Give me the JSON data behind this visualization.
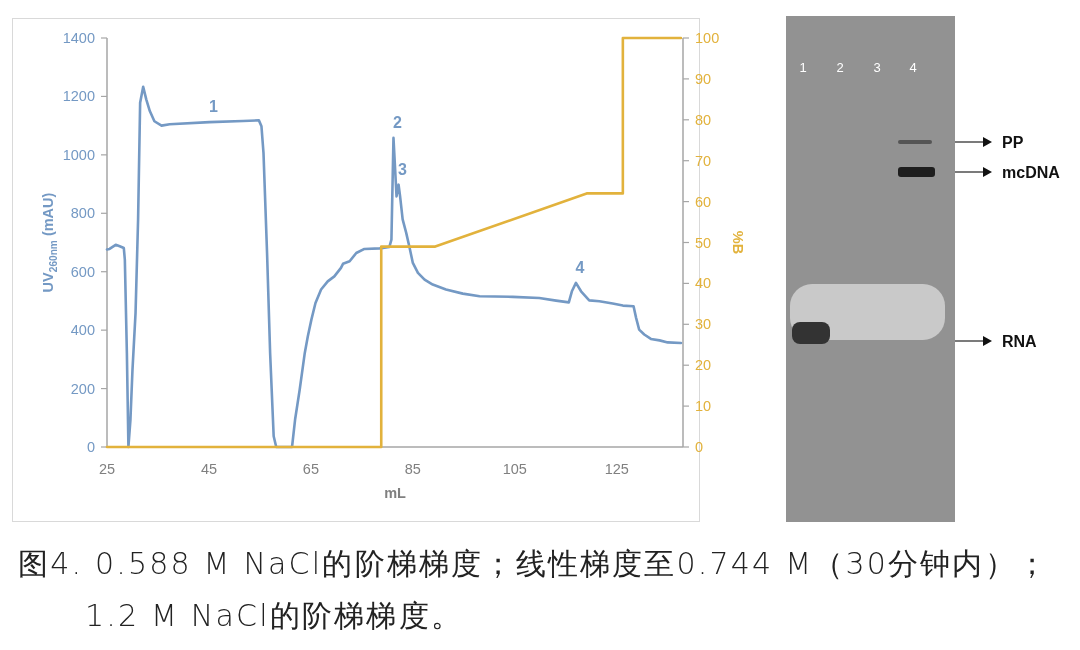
{
  "chart_data": {
    "type": "line",
    "xlabel": "mL",
    "ylabel": "UV$_{260nm}$ (mAU)",
    "y2label": "%B",
    "xlim": [
      25,
      138
    ],
    "xticks": [
      25,
      45,
      65,
      85,
      105,
      125
    ],
    "ylim": [
      0,
      1400
    ],
    "yticks": [
      0,
      200,
      400,
      600,
      800,
      1000,
      1200,
      1400
    ],
    "y2lim": [
      0,
      100
    ],
    "y2ticks": [
      0,
      10,
      20,
      30,
      40,
      50,
      60,
      70,
      80,
      90,
      100
    ],
    "series": [
      {
        "type": "line",
        "color": "#7499c4",
        "x": [
          25,
          25.5,
          26.7,
          27.5,
          28.3,
          28.5,
          28.9,
          29.2,
          29.6,
          30.0,
          30.6,
          31.1,
          31.5,
          32.1,
          32.7,
          33.4,
          34.3,
          35.7,
          37.3,
          45.1,
          51.7,
          54.8,
          55.3,
          55.7,
          56.4,
          57.0,
          57.7,
          58.2,
          61.3,
          61.9,
          62.8,
          63.8,
          64.4,
          65.1,
          65.9,
          67.0,
          68.3,
          69.6,
          70.9,
          71.3,
          72.6,
          73.9,
          75.5,
          78.5,
          80.4,
          80.8,
          81.2,
          81.8,
          82.2,
          82.5,
          83.0,
          83.7,
          84.3,
          85.0,
          86.0,
          87.3,
          88.9,
          91.5,
          94.8,
          98.1,
          104.6,
          109.8,
          113.1,
          115.6,
          116.2,
          117.0,
          118.0,
          119.6,
          121.6,
          124.2,
          126.2,
          128.3,
          128.8,
          129.4,
          130.4,
          131.7,
          133.4,
          135.0,
          137.6
        ],
        "values": [
          676,
          678,
          692,
          687,
          681,
          641,
          322,
          0,
          94,
          265,
          459,
          779,
          1178,
          1233,
          1190,
          1150,
          1115,
          1100,
          1105,
          1112,
          1116,
          1118,
          1098,
          1007,
          664,
          322,
          37,
          0,
          0,
          94,
          196,
          322,
          379,
          436,
          493,
          539,
          567,
          584,
          613,
          627,
          636,
          664,
          678,
          680,
          685,
          710,
          1058,
          858,
          898,
          858,
          779,
          733,
          687,
          630,
          596,
          573,
          556,
          539,
          525,
          516,
          514,
          510,
          501,
          495,
          533,
          562,
          533,
          502,
          499,
          491,
          484,
          482,
          442,
          402,
          385,
          370,
          365,
          358,
          356
        ]
      },
      {
        "type": "line",
        "color": "#e2b23c",
        "axis": "y2",
        "x": [
          25,
          78.8,
          78.8,
          89.4,
          119.1,
          126.2,
          126.2,
          137.6
        ],
        "values": [
          0,
          0,
          49,
          49,
          62,
          62,
          100,
          100
        ]
      }
    ],
    "annotations": [
      {
        "text": "1",
        "x": 45.1,
        "y": 1112
      },
      {
        "text": "2",
        "x": 81.2,
        "y": 1058
      },
      {
        "text": "3",
        "x": 82.2,
        "y": 898
      },
      {
        "text": "4",
        "x": 117.0,
        "y": 562
      },
      "1",
      "2",
      "3",
      "4",
      "PP",
      "mcDNA",
      "RNA",
      "图4. 0.588 M NaCl的阶梯梯度；线性梯度至0.744 M（30分钟内）；1.2 M NaCl的阶梯梯度。"
    ]
  }
}
